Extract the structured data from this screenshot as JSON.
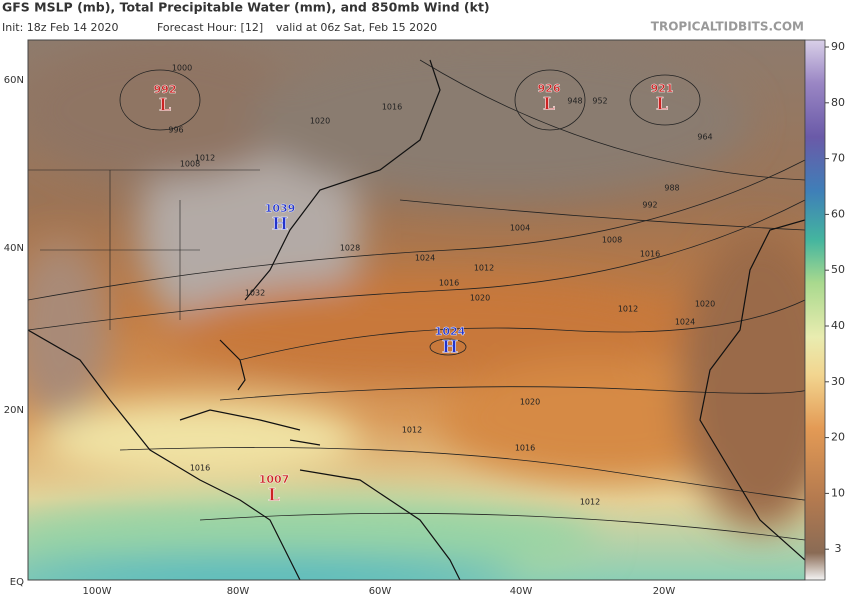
{
  "header": {
    "title": "GFS MSLP (mb), Total Precipitable Water (mm), and 850mb Wind (kt)",
    "init": "Init: 18z Feb 14 2020",
    "forecast_hour": "Forecast Hour: [12]",
    "valid": "valid at 06z Sat, Feb 15 2020",
    "credit": "TROPICALTIDBITS.COM"
  },
  "map": {
    "lat_labels": [
      "60N",
      "40N",
      "20N",
      "EQ"
    ],
    "lon_labels": [
      "100W",
      "80W",
      "60W",
      "40W",
      "20W"
    ],
    "centers": [
      {
        "value": "992",
        "letter": "L"
      },
      {
        "value": "926",
        "letter": "L"
      },
      {
        "value": "921",
        "letter": "L"
      },
      {
        "value": "1039",
        "letter": "H"
      },
      {
        "value": "1024",
        "letter": "H"
      },
      {
        "value": "1007",
        "letter": "L"
      }
    ],
    "isobar_labels": [
      "1000",
      "996",
      "1008",
      "1012",
      "1016",
      "1020",
      "1024",
      "1028",
      "1032",
      "1016",
      "1020",
      "1012",
      "1004",
      "1008",
      "988",
      "992",
      "1016",
      "1020",
      "1024",
      "1012",
      "1012",
      "1016",
      "1020",
      "1016",
      "1012",
      "948",
      "952",
      "964"
    ]
  },
  "colorbar": {
    "ticks": [
      90,
      80,
      70,
      60,
      50,
      40,
      30,
      20,
      10,
      3
    ]
  }
}
